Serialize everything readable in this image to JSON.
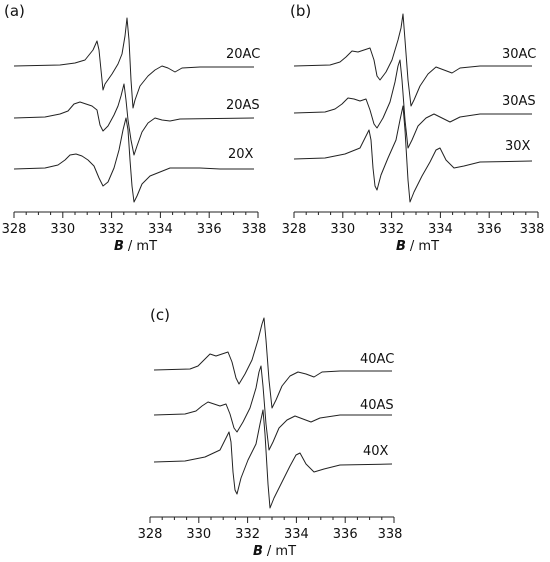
{
  "figure": {
    "panels": [
      {
        "id": "a",
        "label": "(a)",
        "traces": [
          "20AC",
          "20AS",
          "20X"
        ]
      },
      {
        "id": "b",
        "label": "(b)",
        "traces": [
          "30AC",
          "30AS",
          "30X"
        ]
      },
      {
        "id": "c",
        "label": "(c)",
        "traces": [
          "40AC",
          "40AS",
          "40X"
        ]
      }
    ],
    "xlabel_symbol": "B",
    "xlabel_unit": "/ mT"
  },
  "chart_data": [
    {
      "type": "line",
      "panel": "(a)",
      "xlabel": "B / mT",
      "xlim": [
        328,
        338
      ],
      "x_ticks": [
        328,
        330,
        332,
        334,
        336,
        338
      ],
      "y_axis": "none (stacked, offset spectra)",
      "series": [
        {
          "name": "20AC",
          "features": {
            "small_peak": 331.5,
            "small_trough": 331.8,
            "main_peak": 332.9,
            "main_trough": 333.1,
            "tail_dip": 334.2
          }
        },
        {
          "name": "20AS",
          "features": {
            "shoulder": 330.6,
            "small_trough": 331.6,
            "main_peak": 332.7,
            "main_trough": 333.1,
            "tail_bump": 333.9
          }
        },
        {
          "name": "20X",
          "features": {
            "shoulder": 330.6,
            "small_trough": 331.8,
            "main_peak": 332.8,
            "main_trough": 333.1,
            "tail_bump": 334.2
          }
        }
      ]
    },
    {
      "type": "line",
      "panel": "(b)",
      "xlabel": "B / mT",
      "xlim": [
        328,
        338
      ],
      "x_ticks": [
        328,
        330,
        332,
        334,
        336,
        338
      ],
      "y_axis": "none (stacked, offset spectra)",
      "series": [
        {
          "name": "30AC",
          "features": {
            "shoulder": 330.6,
            "small_trough": 331.6,
            "main_peak": 332.8,
            "main_trough": 333.1,
            "tail_bump": 334.1
          }
        },
        {
          "name": "30AS",
          "features": {
            "shoulder": 330.5,
            "small_trough": 331.5,
            "main_peak": 332.7,
            "main_trough": 333.0,
            "tail_bump": 334.0
          }
        },
        {
          "name": "30X",
          "features": {
            "small_peak": 331.2,
            "small_trough": 331.5,
            "main_peak": 332.6,
            "main_trough": 332.9,
            "tail_bump": 333.9
          }
        }
      ]
    },
    {
      "type": "line",
      "panel": "(c)",
      "xlabel": "B / mT",
      "xlim": [
        328,
        338
      ],
      "x_ticks": [
        328,
        330,
        332,
        334,
        336,
        338
      ],
      "y_axis": "none (stacked, offset spectra)",
      "series": [
        {
          "name": "40AC",
          "features": {
            "shoulder": 330.5,
            "small_trough": 331.5,
            "main_peak": 332.7,
            "main_trough": 333.0,
            "tail_bump": 334.0
          }
        },
        {
          "name": "40AS",
          "features": {
            "shoulder": 330.4,
            "small_trough": 331.4,
            "main_peak": 332.6,
            "main_trough": 332.9,
            "tail_bump": 333.9
          }
        },
        {
          "name": "40X",
          "features": {
            "small_peak": 331.1,
            "small_trough": 331.4,
            "main_peak": 332.5,
            "main_trough": 332.8,
            "tail_bump": 333.8
          }
        }
      ]
    }
  ]
}
